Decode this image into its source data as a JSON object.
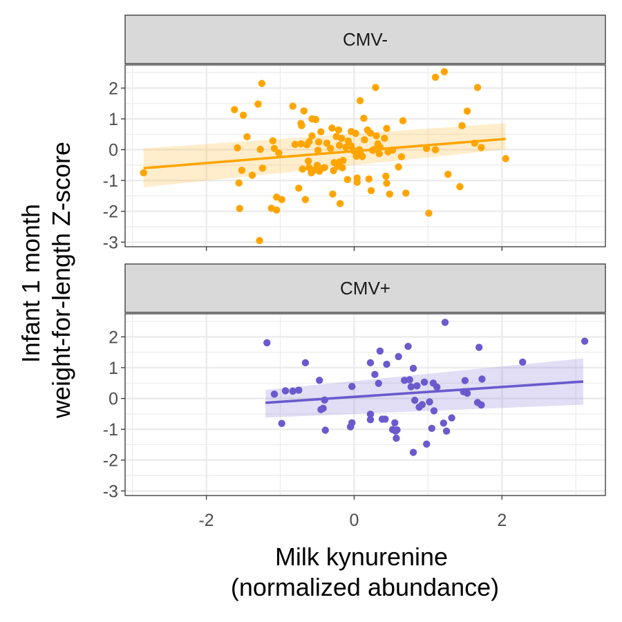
{
  "chart_data": {
    "type": "scatter",
    "xlabel": [
      "Milk kynurenine",
      "(normalized abundance)"
    ],
    "ylabel": [
      "Infant 1 month",
      "weight-for-length Z-score"
    ],
    "xlim": [
      -3.1,
      3.4
    ],
    "ylim": [
      -3.15,
      2.75
    ],
    "x_ticks": [
      -2,
      0,
      2
    ],
    "x_tick_labels": [
      "-2",
      "0",
      "2"
    ],
    "y_ticks": [
      -3,
      -2,
      -1,
      0,
      1,
      2
    ],
    "y_tick_labels": [
      "-3",
      "-2",
      "-1",
      "0",
      "1",
      "2"
    ],
    "grid": true,
    "legend": "none",
    "panels": [
      {
        "label": "CMV-",
        "color": "#FFA500",
        "fit": {
          "x": [
            -2.85,
            2.05
          ],
          "y": [
            -0.6,
            0.35
          ],
          "lower": [
            -1.22,
            0.01
          ],
          "upper": [
            0.04,
            0.86
          ]
        },
        "points": [
          [
            -2.85,
            -0.75
          ],
          [
            -1.62,
            1.3
          ],
          [
            -1.58,
            0.06
          ],
          [
            -1.56,
            -1.08
          ],
          [
            -1.55,
            -1.91
          ],
          [
            -1.52,
            -0.67
          ],
          [
            -1.5,
            1.12
          ],
          [
            -1.45,
            0.42
          ],
          [
            -1.38,
            -0.83
          ],
          [
            -1.3,
            1.48
          ],
          [
            -1.28,
            -2.95
          ],
          [
            -1.27,
            0.01
          ],
          [
            -1.25,
            2.15
          ],
          [
            -1.24,
            -0.6
          ],
          [
            -1.12,
            -1.9
          ],
          [
            -1.1,
            0.29
          ],
          [
            -1.08,
            0.04
          ],
          [
            -1.05,
            -1.96
          ],
          [
            -1.05,
            -1.54
          ],
          [
            -1.02,
            -0.11
          ],
          [
            -0.98,
            -1.62
          ],
          [
            -0.83,
            1.41
          ],
          [
            -0.8,
            0.17
          ],
          [
            -0.75,
            -1.25
          ],
          [
            -0.72,
            0.85
          ],
          [
            -0.72,
            0.19
          ],
          [
            -0.71,
            0.78
          ],
          [
            -0.7,
            -0.63
          ],
          [
            -0.68,
            1.26
          ],
          [
            -0.66,
            -1.62
          ],
          [
            -0.64,
            0.16
          ],
          [
            -0.62,
            -0.37
          ],
          [
            -0.61,
            0.26
          ],
          [
            -0.61,
            -0.58
          ],
          [
            -0.58,
            -0.75
          ],
          [
            -0.57,
            1.0
          ],
          [
            -0.57,
            0.45
          ],
          [
            -0.55,
            -0.67
          ],
          [
            -0.52,
            0.98
          ],
          [
            -0.5,
            -0.51
          ],
          [
            -0.49,
            -0.02
          ],
          [
            -0.48,
            0.25
          ],
          [
            -0.47,
            -0.7
          ],
          [
            -0.45,
            -0.62
          ],
          [
            -0.45,
            0.58
          ],
          [
            -0.4,
            -0.58
          ],
          [
            -0.37,
            0.21
          ],
          [
            -0.32,
            0.04
          ],
          [
            -0.3,
            0.7
          ],
          [
            -0.29,
            -1.44
          ],
          [
            -0.28,
            -0.68
          ],
          [
            -0.27,
            -0.42
          ],
          [
            -0.24,
            0.43
          ],
          [
            -0.22,
            -0.54
          ],
          [
            -0.21,
            0.64
          ],
          [
            -0.2,
            0.14
          ],
          [
            -0.2,
            -0.4
          ],
          [
            -0.19,
            -1.75
          ],
          [
            -0.17,
            0.37
          ],
          [
            -0.16,
            -0.59
          ],
          [
            -0.15,
            -0.35
          ],
          [
            -0.11,
            0.08
          ],
          [
            -0.09,
            -0.97
          ],
          [
            -0.08,
            0.28
          ],
          [
            -0.04,
            0.12
          ],
          [
            -0.04,
            0.59
          ],
          [
            -0.01,
            -0.03
          ],
          [
            0.02,
            0.53
          ],
          [
            0.03,
            -0.21
          ],
          [
            0.04,
            -0.92
          ],
          [
            0.04,
            -1.06
          ],
          [
            0.05,
            -0.09
          ],
          [
            0.07,
            0.0
          ],
          [
            0.08,
            1.59
          ],
          [
            0.09,
            -0.15
          ],
          [
            0.11,
            -0.22
          ],
          [
            0.13,
            1.02
          ],
          [
            0.14,
            0.32
          ],
          [
            0.18,
            0.64
          ],
          [
            0.2,
            -0.95
          ],
          [
            0.22,
            0.54
          ],
          [
            0.23,
            -1.33
          ],
          [
            0.25,
            -0.02
          ],
          [
            0.27,
            0.01
          ],
          [
            0.29,
            2.02
          ],
          [
            0.3,
            0.45
          ],
          [
            0.32,
            0.19
          ],
          [
            0.34,
            -0.13
          ],
          [
            0.35,
            0.08
          ],
          [
            0.41,
            0.37
          ],
          [
            0.43,
            -0.86
          ],
          [
            0.44,
            0.69
          ],
          [
            0.44,
            -1.09
          ],
          [
            0.46,
            -0.07
          ],
          [
            0.48,
            -1.44
          ],
          [
            0.52,
            -0.01
          ],
          [
            0.6,
            -0.56
          ],
          [
            0.64,
            -0.23
          ],
          [
            0.66,
            0.94
          ],
          [
            0.7,
            -1.41
          ],
          [
            0.98,
            0.04
          ],
          [
            1.01,
            -2.06
          ],
          [
            1.1,
            0.0
          ],
          [
            1.1,
            2.35
          ],
          [
            1.22,
            2.53
          ],
          [
            1.27,
            -0.8
          ],
          [
            1.43,
            -1.2
          ],
          [
            1.46,
            0.78
          ],
          [
            1.53,
            1.25
          ],
          [
            1.63,
            0.21
          ],
          [
            1.67,
            2.02
          ],
          [
            1.72,
            0.07
          ],
          [
            2.05,
            -0.29
          ]
        ]
      },
      {
        "label": "CMV+",
        "color": "#6A5ACD",
        "fit": {
          "x": [
            -1.2,
            3.1
          ],
          "y": [
            -0.14,
            0.55
          ],
          "lower": [
            -0.62,
            -0.2
          ],
          "upper": [
            0.28,
            1.3
          ]
        },
        "points": [
          [
            -1.18,
            1.81
          ],
          [
            -1.08,
            0.14
          ],
          [
            -0.98,
            -0.81
          ],
          [
            -0.93,
            0.25
          ],
          [
            -0.83,
            0.24
          ],
          [
            -0.75,
            0.27
          ],
          [
            -0.66,
            1.16
          ],
          [
            -0.47,
            0.59
          ],
          [
            -0.45,
            -0.36
          ],
          [
            -0.42,
            -0.32
          ],
          [
            -0.4,
            -0.05
          ],
          [
            -0.39,
            -1.03
          ],
          [
            -0.05,
            -0.92
          ],
          [
            -0.03,
            -0.79
          ],
          [
            -0.03,
            0.39
          ],
          [
            0.22,
            -0.51
          ],
          [
            0.22,
            -0.69
          ],
          [
            0.22,
            1.16
          ],
          [
            0.28,
            0.78
          ],
          [
            0.33,
            0.49
          ],
          [
            0.35,
            1.54
          ],
          [
            0.38,
            -0.67
          ],
          [
            0.42,
            -0.67
          ],
          [
            0.44,
            1.11
          ],
          [
            0.52,
            -1.01
          ],
          [
            0.55,
            -0.79
          ],
          [
            0.56,
            -1.06
          ],
          [
            0.57,
            -1.29
          ],
          [
            0.58,
            -1.02
          ],
          [
            0.6,
            1.36
          ],
          [
            0.68,
            0.59
          ],
          [
            0.73,
            1.69
          ],
          [
            0.75,
            0.61
          ],
          [
            0.77,
            0.38
          ],
          [
            0.8,
            0.98
          ],
          [
            0.8,
            -1.75
          ],
          [
            0.82,
            -0.06
          ],
          [
            0.85,
            0.41
          ],
          [
            0.88,
            -0.28
          ],
          [
            0.92,
            -0.2
          ],
          [
            0.95,
            0.53
          ],
          [
            0.98,
            -1.48
          ],
          [
            1.02,
            -0.11
          ],
          [
            1.05,
            -0.97
          ],
          [
            1.07,
            0.5
          ],
          [
            1.08,
            -0.4
          ],
          [
            1.12,
            0.37
          ],
          [
            1.21,
            -0.8
          ],
          [
            1.23,
            2.47
          ],
          [
            1.25,
            -1.06
          ],
          [
            1.32,
            -0.63
          ],
          [
            1.48,
            0.22
          ],
          [
            1.5,
            0.58
          ],
          [
            1.53,
            0.17
          ],
          [
            1.67,
            -0.13
          ],
          [
            1.69,
            1.66
          ],
          [
            1.72,
            -0.21
          ],
          [
            1.73,
            0.63
          ],
          [
            2.28,
            1.18
          ],
          [
            3.12,
            1.86
          ]
        ]
      }
    ]
  }
}
